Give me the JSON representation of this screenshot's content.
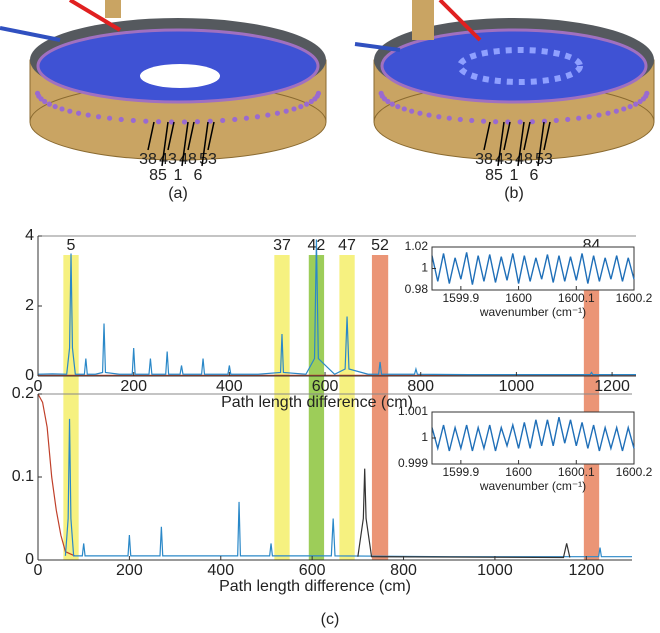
{
  "figure": {
    "panel_a": {
      "caption": "(a)",
      "labels_top": [
        "38",
        "43",
        "48",
        "53"
      ],
      "labels_bottom": [
        "85",
        "1",
        "6"
      ]
    },
    "panel_b": {
      "caption": "(b)",
      "labels_top": [
        "38",
        "43",
        "48",
        "53"
      ],
      "labels_bottom": [
        "85",
        "1",
        "6"
      ]
    },
    "panel_c": {
      "caption": "(c)"
    }
  },
  "chart_data": [
    {
      "type": "line",
      "xlabel": "Path length difference (cm)",
      "xlim": [
        0,
        1250
      ],
      "ylim": [
        0,
        4
      ],
      "xticks": [
        0,
        200,
        400,
        600,
        800,
        1000,
        1200
      ],
      "yticks": [
        0,
        2,
        4
      ],
      "highlights": [
        {
          "label": "5",
          "xrange": [
            53,
            85
          ],
          "color": "#f5ef6a"
        },
        {
          "label": "37",
          "xrange": [
            494,
            526
          ],
          "color": "#f5ef6a"
        },
        {
          "label": "42",
          "xrange": [
            566,
            598
          ],
          "color": "#8cc43c"
        },
        {
          "label": "47",
          "xrange": [
            630,
            662
          ],
          "color": "#f5ef6a"
        },
        {
          "label": "52",
          "xrange": [
            698,
            732
          ],
          "color": "#e8825e"
        },
        {
          "label": "84",
          "xrange": [
            1141,
            1173
          ],
          "color": "#e8825e"
        }
      ],
      "series": [
        {
          "color": "#c0402a",
          "x": [
            0,
            1250
          ],
          "values": [
            0.02,
            0.02
          ]
        },
        {
          "color": "#2a88c8",
          "x": [
            0,
            30,
            60,
            66,
            69,
            72,
            78,
            97,
            100,
            103,
            120,
            135,
            138,
            141,
            170,
            197,
            200,
            203,
            232,
            235,
            238,
            267,
            270,
            273,
            297,
            300,
            303,
            342,
            345,
            348,
            397,
            400,
            403,
            460,
            507,
            510,
            513,
            560,
            578,
            582,
            586,
            620,
            642,
            646,
            650,
            690,
            712,
            715,
            718,
            787,
            790,
            793,
            900,
            1100,
            1154,
            1157,
            1160,
            1250
          ],
          "values": [
            0.05,
            0.06,
            0.05,
            0.8,
            3.5,
            0.8,
            0.05,
            0.05,
            0.5,
            0.05,
            0.05,
            0.1,
            1.5,
            0.1,
            0.05,
            0.05,
            0.8,
            0.05,
            0.05,
            0.5,
            0.05,
            0.05,
            0.7,
            0.05,
            0.05,
            0.3,
            0.05,
            0.05,
            0.5,
            0.05,
            0.05,
            0.3,
            0.05,
            0.05,
            0.1,
            1.2,
            0.1,
            0.05,
            0.5,
            3.9,
            0.5,
            0.05,
            0.2,
            1.7,
            0.2,
            0.05,
            0.05,
            0.4,
            0.05,
            0.05,
            0.2,
            0.05,
            0.04,
            0.04,
            0.04,
            0.1,
            0.04,
            0.04
          ]
        }
      ]
    },
    {
      "type": "line",
      "xlabel": "wavenumber (cm⁻¹)",
      "xlim": [
        1599.85,
        1600.2
      ],
      "ylim": [
        0.98,
        1.02
      ],
      "xticks": [
        1599.9,
        1600,
        1600.1,
        1600.2
      ],
      "yticks": [
        0.98,
        1,
        1.02
      ],
      "series": [
        {
          "color": "#1f6fb8",
          "x": [
            1599.85,
            1599.86,
            1599.87,
            1599.88,
            1599.89,
            1599.9,
            1599.91,
            1599.92,
            1599.93,
            1599.94,
            1599.95,
            1599.96,
            1599.97,
            1599.98,
            1599.99,
            1600,
            1600.01,
            1600.02,
            1600.03,
            1600.04,
            1600.05,
            1600.06,
            1600.07,
            1600.08,
            1600.09,
            1600.1,
            1600.11,
            1600.12,
            1600.13,
            1600.14,
            1600.15,
            1600.16,
            1600.17,
            1600.18,
            1600.19,
            1600.2
          ],
          "values": [
            1.012,
            0.988,
            1.014,
            0.986,
            1.01,
            0.99,
            1.015,
            0.985,
            1.012,
            0.988,
            1.013,
            0.987,
            1.011,
            0.989,
            1.014,
            0.986,
            1.012,
            0.988,
            1.01,
            0.99,
            1.013,
            0.987,
            1.012,
            0.988,
            1.011,
            0.989,
            1.014,
            0.986,
            1.012,
            0.988,
            1.01,
            0.99,
            1.012,
            0.988,
            1.01,
            0.99
          ]
        }
      ]
    },
    {
      "type": "line",
      "xlabel": "Path length difference (cm)",
      "xlim": [
        0,
        1300
      ],
      "ylim": [
        0,
        0.2
      ],
      "xticks": [
        0,
        200,
        400,
        600,
        800,
        1000,
        1200
      ],
      "yticks": [
        0,
        0.1,
        0.2
      ],
      "series": [
        {
          "color": "#c0402a",
          "x": [
            0,
            10,
            20,
            30,
            40,
            50,
            60,
            80
          ],
          "values": [
            0.2,
            0.19,
            0.16,
            0.1,
            0.06,
            0.03,
            0.01,
            0.005
          ]
        },
        {
          "color": "#2a88c8",
          "x": [
            60,
            66,
            69,
            72,
            78,
            97,
            100,
            103,
            197,
            200,
            203,
            267,
            270,
            273,
            437,
            440,
            443,
            507,
            510,
            513,
            642,
            646,
            650,
            900,
            1227,
            1230,
            1233,
            1300
          ],
          "values": [
            0.005,
            0.05,
            0.17,
            0.05,
            0.005,
            0.005,
            0.02,
            0.005,
            0.005,
            0.03,
            0.005,
            0.005,
            0.04,
            0.005,
            0.005,
            0.07,
            0.005,
            0.005,
            0.02,
            0.005,
            0.005,
            0.05,
            0.005,
            0.004,
            0.004,
            0.015,
            0.004,
            0.004
          ]
        },
        {
          "color": "#333333",
          "x": [
            700,
            712,
            715,
            718,
            730,
            1150,
            1157,
            1164
          ],
          "values": [
            0.004,
            0.05,
            0.11,
            0.05,
            0.004,
            0.003,
            0.02,
            0.003
          ]
        }
      ]
    },
    {
      "type": "line",
      "xlabel": "wavenumber (cm⁻¹)",
      "xlim": [
        1599.85,
        1600.2
      ],
      "ylim": [
        0.999,
        1.001
      ],
      "xticks": [
        1599.9,
        1600,
        1600.1,
        1600.2
      ],
      "yticks": [
        0.999,
        1,
        1.001
      ],
      "series": [
        {
          "color": "#1f6fb8",
          "x": [
            1599.85,
            1599.86,
            1599.87,
            1599.88,
            1599.89,
            1599.9,
            1599.91,
            1599.92,
            1599.93,
            1599.94,
            1599.95,
            1599.96,
            1599.97,
            1599.98,
            1599.99,
            1600,
            1600.01,
            1600.02,
            1600.03,
            1600.04,
            1600.05,
            1600.06,
            1600.07,
            1600.08,
            1600.09,
            1600.1,
            1600.11,
            1600.12,
            1600.13,
            1600.14,
            1600.15,
            1600.16,
            1600.17,
            1600.18,
            1600.19,
            1600.2
          ],
          "values": [
            1.0004,
            0.9996,
            1.0005,
            0.9995,
            1.0004,
            0.9996,
            1.0005,
            0.9995,
            1.0004,
            0.9996,
            1.0005,
            0.9995,
            1.0004,
            0.9997,
            1.0005,
            0.9996,
            1.0006,
            0.9996,
            1.0007,
            0.9997,
            1.0007,
            0.9997,
            1.0008,
            0.9998,
            1.0007,
            0.9997,
            1.0006,
            0.9996,
            1.0005,
            0.9995,
            1.0004,
            0.9996,
            1.0004,
            0.9995,
            1.0004,
            0.9996
          ]
        }
      ]
    }
  ]
}
